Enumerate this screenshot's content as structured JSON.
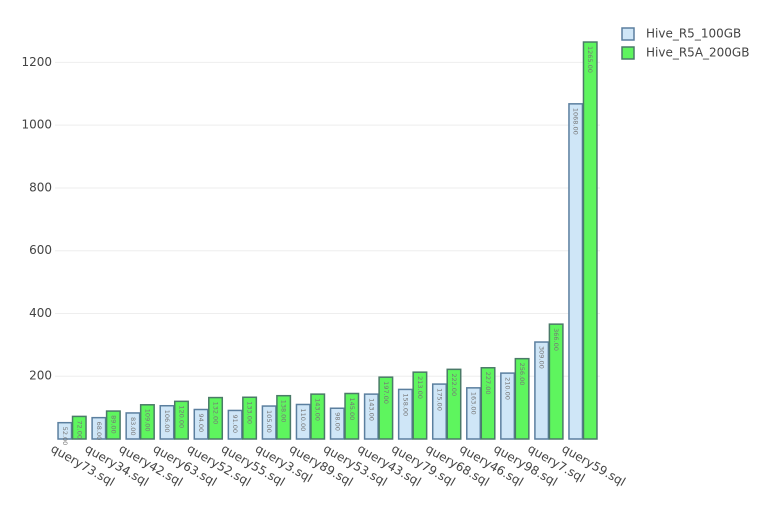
{
  "chart_data": {
    "type": "bar",
    "categories": [
      "query73.sql",
      "query34.sql",
      "query42.sql",
      "query63.sql",
      "query52.sql",
      "query55.sql",
      "query3.sql",
      "query89.sql",
      "query53.sql",
      "query43.sql",
      "query79.sql",
      "query68.sql",
      "query46.sql",
      "query98.sql",
      "query7.sql",
      "query59.sql"
    ],
    "series": [
      {
        "name": "Hive_R5_100GB",
        "color": "#cfe6f7",
        "values": [
          52,
          68,
          83,
          106,
          94,
          91,
          105,
          110,
          98,
          143,
          158,
          175,
          163,
          210,
          309,
          1068
        ],
        "value_labels": [
          "52.00",
          "68.00",
          "83.00",
          "106.00",
          "94.00",
          "91.00",
          "105.00",
          "110.00",
          "98.00",
          "143.00",
          "158.00",
          "175.00",
          "163.00",
          "210.00",
          "309.00",
          "1068.00"
        ]
      },
      {
        "name": "Hive_R5A_200GB",
        "color": "#5ef55e",
        "values": [
          72,
          89,
          109,
          120,
          132,
          133,
          138,
          143,
          145,
          197,
          213,
          222,
          227,
          256,
          366,
          1265
        ],
        "value_labels": [
          "72.00",
          "89.00",
          "109.00",
          "120.00",
          "132.00",
          "133.00",
          "138.00",
          "143.00",
          "145.00",
          "197.00",
          "213.00",
          "222.00",
          "227.00",
          "256.00",
          "366.00",
          "1265.00"
        ]
      }
    ],
    "ylim": [
      0,
      1332
    ],
    "yticks": [
      200,
      400,
      600,
      800,
      1000,
      1200
    ],
    "grid": true
  }
}
